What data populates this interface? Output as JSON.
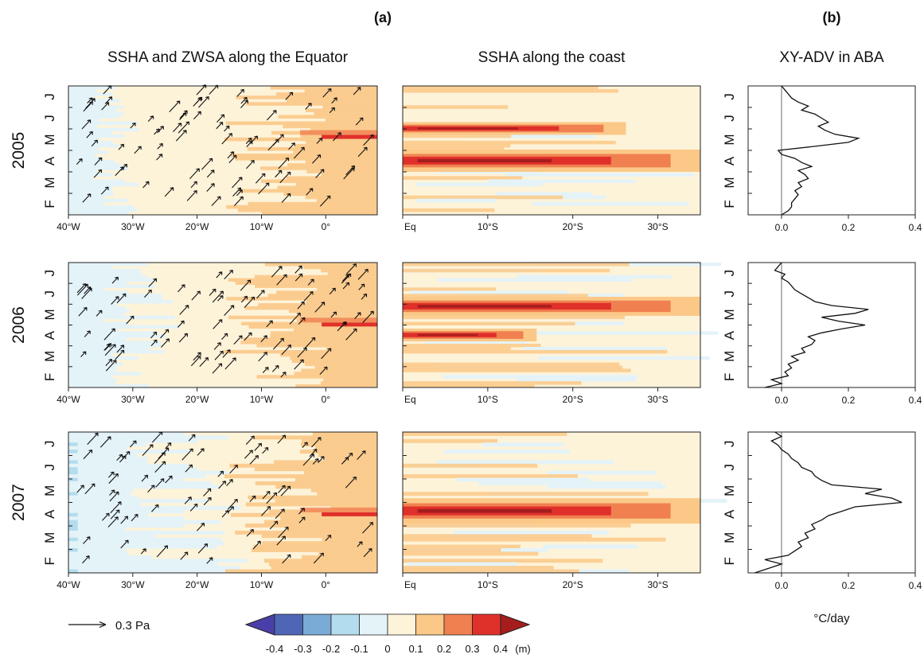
{
  "panel_labels": {
    "a": "(a)",
    "b": "(b)"
  },
  "column_titles": {
    "equator": "SSHA and ZWSA along the Equator",
    "coast": "SSHA along the coast",
    "adv": "XY-ADV in ABA"
  },
  "years": [
    "2005",
    "2006",
    "2007"
  ],
  "month_labels": [
    "F",
    "M",
    "A",
    "M",
    "J",
    "J"
  ],
  "equator_xticks": [
    "40°W",
    "30°W",
    "20°W",
    "10°W",
    "0°"
  ],
  "coast_xticks": [
    "Eq",
    "10°S",
    "20°S",
    "30°S"
  ],
  "adv_xticks": [
    "0.0",
    "0.2",
    "0.4"
  ],
  "adv_unit": "°C/day",
  "wind_reference": {
    "label": "0.3 Pa"
  },
  "colorbar": {
    "ticks": [
      "-0.4",
      "-0.3",
      "-0.2",
      "-0.1",
      "0",
      "0.1",
      "0.2",
      "0.3",
      "0.4"
    ],
    "unit": "(m)",
    "colors": [
      "#4a3fa8",
      "#4e66b5",
      "#7aaad6",
      "#b3dcee",
      "#e4f3f8",
      "#fdf3d9",
      "#fbc887",
      "#f08050",
      "#e0302a",
      "#a51d1d"
    ]
  },
  "chart_data": [
    {
      "type": "heatmap",
      "title": "SSHA and ZWSA along the Equator",
      "xlabel": "",
      "ylabel": "",
      "x_range": [
        "40°W",
        "8°E"
      ],
      "y_axis": "time (Feb–Jul)",
      "rows": [
        "2005",
        "2006",
        "2007"
      ],
      "color_variable": "SSHA (m)",
      "color_range": [
        -0.4,
        0.4
      ],
      "overlay": "ZWSA wind stress arrows (reference 0.3 Pa)"
    },
    {
      "type": "heatmap",
      "title": "SSHA along the coast",
      "xlabel": "",
      "ylabel": "",
      "x_range": [
        "Eq",
        "35°S"
      ],
      "y_axis": "time (Feb–Jul)",
      "rows": [
        "2005",
        "2006",
        "2007"
      ],
      "color_variable": "SSHA (m)",
      "color_range": [
        -0.4,
        0.4
      ]
    },
    {
      "type": "line",
      "title": "XY-ADV in ABA",
      "xlabel": "°C/day",
      "ylabel": "",
      "xlim": [
        -0.1,
        0.4
      ],
      "y": [
        "F",
        "M",
        "A",
        "M",
        "J",
        "J"
      ],
      "series": [
        {
          "year": "2005",
          "peak_value": 0.23,
          "peak_month": "A",
          "profile": [
            0.0,
            0.02,
            0.03,
            0.03,
            0.04,
            0.05,
            0.04,
            0.06,
            0.05,
            0.08,
            0.07,
            0.05,
            0.09,
            0.06,
            0.04,
            0.0,
            -0.01,
            0.1,
            0.2,
            0.23,
            0.16,
            0.13,
            0.11,
            0.14,
            0.12,
            0.1,
            0.06,
            0.08,
            0.05,
            0.03,
            0.02,
            0.01,
            0.0
          ]
        },
        {
          "year": "2006",
          "peak_value": 0.26,
          "peak_month": "M",
          "profile": [
            -0.05,
            0.0,
            -0.03,
            0.02,
            0.01,
            0.03,
            0.02,
            0.05,
            0.03,
            0.07,
            0.06,
            0.09,
            0.1,
            0.08,
            0.12,
            0.18,
            0.25,
            0.17,
            0.12,
            0.22,
            0.26,
            0.15,
            0.1,
            0.08,
            0.06,
            0.04,
            0.03,
            0.02,
            0.0,
            0.01,
            -0.02,
            -0.01,
            0.0
          ]
        },
        {
          "year": "2007",
          "peak_value": 0.36,
          "peak_month": "A",
          "profile": [
            -0.08,
            -0.04,
            0.0,
            -0.05,
            0.02,
            0.04,
            0.06,
            0.05,
            0.08,
            0.07,
            0.1,
            0.09,
            0.12,
            0.14,
            0.18,
            0.22,
            0.36,
            0.33,
            0.25,
            0.3,
            0.15,
            0.12,
            0.1,
            0.09,
            0.06,
            0.05,
            0.03,
            0.02,
            0.0,
            -0.01,
            -0.03,
            0.0,
            -0.02
          ]
        }
      ]
    }
  ]
}
